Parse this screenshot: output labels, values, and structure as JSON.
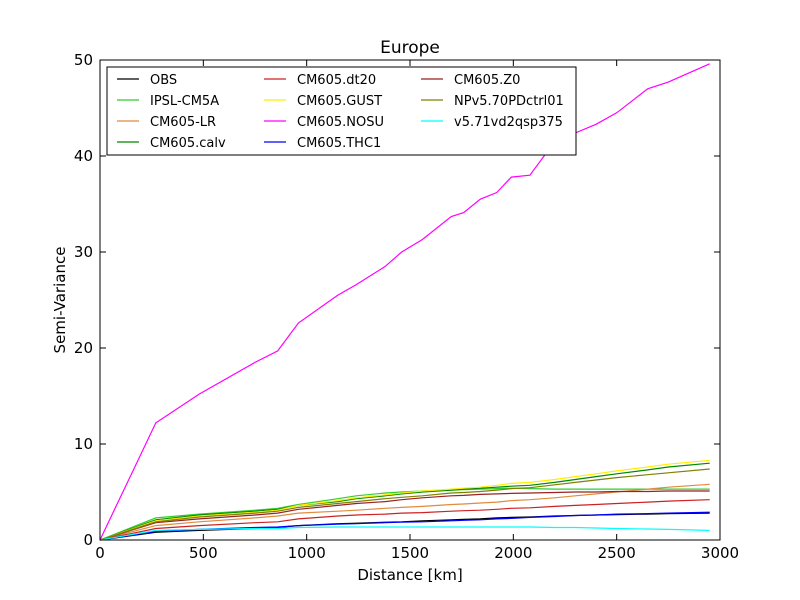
{
  "chart_data": {
    "type": "line",
    "title": "Europe",
    "xlabel": "Distance [km]",
    "ylabel": "Semi-Variance",
    "xlim": [
      0,
      3000
    ],
    "ylim": [
      0,
      50
    ],
    "xticks": [
      0,
      500,
      1000,
      1500,
      2000,
      2500,
      3000
    ],
    "yticks": [
      0,
      10,
      20,
      30,
      40,
      50
    ],
    "grid": false,
    "legend_position": "top-left",
    "x": [
      0,
      270,
      480,
      750,
      860,
      960,
      1150,
      1240,
      1380,
      1460,
      1560,
      1700,
      1760,
      1840,
      1920,
      1990,
      2080,
      2200,
      2300,
      2400,
      2500,
      2650,
      2750,
      2950
    ],
    "series": [
      {
        "name": "OBS",
        "color": "#000000",
        "values": [
          0,
          0.8,
          1.0,
          1.2,
          1.3,
          1.5,
          1.7,
          1.75,
          1.85,
          1.9,
          2.0,
          2.1,
          2.15,
          2.2,
          2.3,
          2.35,
          2.4,
          2.5,
          2.55,
          2.6,
          2.65,
          2.7,
          2.75,
          2.8
        ]
      },
      {
        "name": "IPSL-CM5A",
        "color": "#33cc33",
        "values": [
          0,
          2.3,
          2.7,
          3.1,
          3.3,
          3.7,
          4.3,
          4.6,
          4.9,
          5.0,
          5.1,
          5.2,
          5.25,
          5.3,
          5.35,
          5.4,
          5.35,
          5.3,
          5.3,
          5.3,
          5.3,
          5.3,
          5.3,
          5.3
        ]
      },
      {
        "name": "CM605-LR",
        "color": "#e08b3e",
        "values": [
          0,
          1.5,
          1.9,
          2.3,
          2.5,
          2.8,
          3.0,
          3.1,
          3.3,
          3.4,
          3.5,
          3.7,
          3.75,
          3.85,
          3.95,
          4.1,
          4.2,
          4.4,
          4.6,
          4.8,
          5.0,
          5.3,
          5.5,
          5.8
        ]
      },
      {
        "name": "CM605.calv",
        "color": "#008800",
        "values": [
          0,
          2.1,
          2.6,
          3.0,
          3.2,
          3.6,
          4.0,
          4.3,
          4.6,
          4.8,
          5.0,
          5.2,
          5.3,
          5.4,
          5.5,
          5.6,
          5.7,
          6.0,
          6.3,
          6.6,
          6.9,
          7.3,
          7.6,
          8.0
        ]
      },
      {
        "name": "CM605.dt20",
        "color": "#cc2222",
        "values": [
          0,
          1.2,
          1.5,
          1.8,
          1.9,
          2.2,
          2.5,
          2.6,
          2.7,
          2.8,
          2.85,
          3.0,
          3.05,
          3.1,
          3.2,
          3.3,
          3.35,
          3.5,
          3.6,
          3.7,
          3.8,
          3.95,
          4.05,
          4.2
        ]
      },
      {
        "name": "CM605.GUST",
        "color": "#ffee00",
        "values": [
          0,
          2.0,
          2.5,
          2.9,
          3.1,
          3.6,
          4.1,
          4.4,
          4.7,
          4.9,
          5.1,
          5.3,
          5.4,
          5.5,
          5.7,
          5.9,
          6.0,
          6.3,
          6.6,
          6.9,
          7.2,
          7.6,
          7.9,
          8.3
        ]
      },
      {
        "name": "CM605.NOSU",
        "color": "#ff00ff",
        "values": [
          0,
          12.2,
          15.2,
          18.5,
          19.7,
          22.6,
          25.5,
          26.6,
          28.5,
          30.0,
          31.3,
          33.7,
          34.1,
          35.5,
          36.2,
          37.8,
          38.0,
          41.5,
          42.4,
          43.3,
          44.5,
          47.0,
          47.7,
          49.6
        ]
      },
      {
        "name": "CM605.THC1",
        "color": "#0000ff",
        "values": [
          0,
          0.9,
          1.1,
          1.3,
          1.35,
          1.5,
          1.65,
          1.7,
          1.8,
          1.85,
          1.9,
          2.0,
          2.05,
          2.1,
          2.2,
          2.25,
          2.35,
          2.45,
          2.55,
          2.6,
          2.7,
          2.75,
          2.8,
          2.9
        ]
      },
      {
        "name": "CM605.Z0",
        "color": "#992222",
        "values": [
          0,
          1.8,
          2.2,
          2.6,
          2.8,
          3.2,
          3.6,
          3.8,
          4.0,
          4.2,
          4.4,
          4.6,
          4.65,
          4.75,
          4.8,
          4.85,
          4.9,
          4.95,
          5.0,
          5.0,
          5.05,
          5.05,
          5.1,
          5.1
        ]
      },
      {
        "name": "NPv5.70PDctrl01",
        "color": "#808000",
        "values": [
          0,
          1.9,
          2.4,
          2.8,
          3.0,
          3.4,
          3.8,
          4.0,
          4.3,
          4.45,
          4.6,
          4.9,
          4.95,
          5.05,
          5.2,
          5.35,
          5.45,
          5.75,
          6.0,
          6.25,
          6.5,
          6.8,
          7.0,
          7.4
        ]
      },
      {
        "name": "v5.71vd2qsp375",
        "color": "#00ffff",
        "values": [
          0,
          1.0,
          1.1,
          1.2,
          1.2,
          1.3,
          1.35,
          1.35,
          1.35,
          1.35,
          1.35,
          1.35,
          1.35,
          1.35,
          1.35,
          1.35,
          1.35,
          1.3,
          1.3,
          1.25,
          1.2,
          1.15,
          1.1,
          1.0
        ]
      }
    ]
  }
}
